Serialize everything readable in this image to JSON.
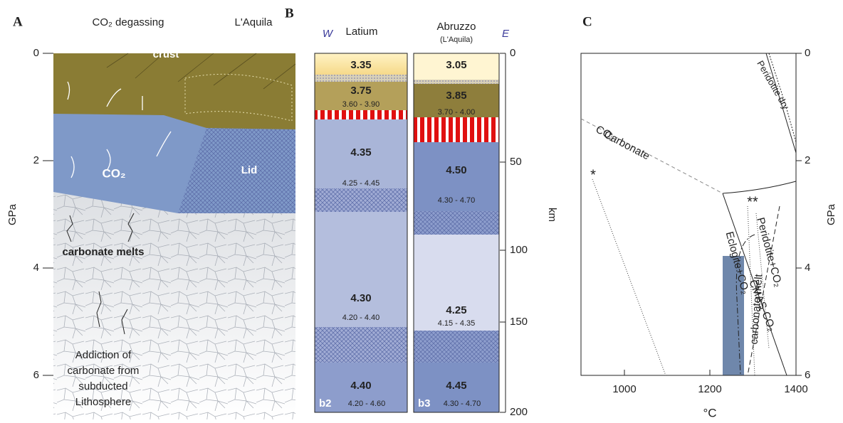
{
  "panels": {
    "a": {
      "letter": "A",
      "axis_label": "GPa",
      "ticks": [
        "0",
        "2",
        "4",
        "6"
      ],
      "labels": {
        "co2_degassing": "CO₂ degassing",
        "laquila": "L'Aquila",
        "crust": "crust",
        "co2": "CO₂",
        "lid": "Lid",
        "carbonate_melts": "carbonate melts",
        "addiction": [
          "Addiction of",
          "carbonate from",
          "subducted",
          "Lithosphere"
        ]
      }
    },
    "b": {
      "letter": "B",
      "west": "W",
      "east": "E",
      "axis_label": "km",
      "ticks": [
        "0",
        "50",
        "100",
        "150",
        "200"
      ],
      "columns": [
        {
          "name": "Latium",
          "code": "b2",
          "layers": [
            {
              "value": "3.35"
            },
            {
              "value": "3.75",
              "range": "3.60 - 3.90"
            },
            {
              "value": "4.35",
              "range": "4.25 - 4.45"
            },
            {
              "value": "4.30",
              "range": "4.20 - 4.40"
            },
            {
              "value": "4.40",
              "range": "4.20 - 4.60"
            }
          ]
        },
        {
          "name": "Abruzzo",
          "subname": "(L'Aquila)",
          "code": "b3",
          "layers": [
            {
              "value": "3.05"
            },
            {
              "value": "3.85",
              "range": "3.70 - 4.00"
            },
            {
              "value": "4.50",
              "range": "4.30 - 4.70"
            },
            {
              "value": "4.25",
              "range": "4.15 - 4.35"
            },
            {
              "value": "4.45",
              "range": "4.30 - 4.70"
            }
          ]
        }
      ]
    },
    "c": {
      "letter": "C",
      "x_label": "°C",
      "y_label": "GPa",
      "xticks": [
        "1000",
        "1200",
        "1400"
      ],
      "yticks": [
        "0",
        "2",
        "4",
        "6"
      ],
      "labels": {
        "peridotite_dry": "Peridotite dry",
        "co2": "CO₂",
        "carbonate": "Carbonate",
        "star1": "*",
        "star2": "**",
        "eclogite": "Eclogite+CO₂",
        "carbonate_melt": "carbonate melt",
        "peridotite_co2": "Peridotite+CO₂",
        "cmas": "CMAS-CO₂"
      }
    }
  }
}
